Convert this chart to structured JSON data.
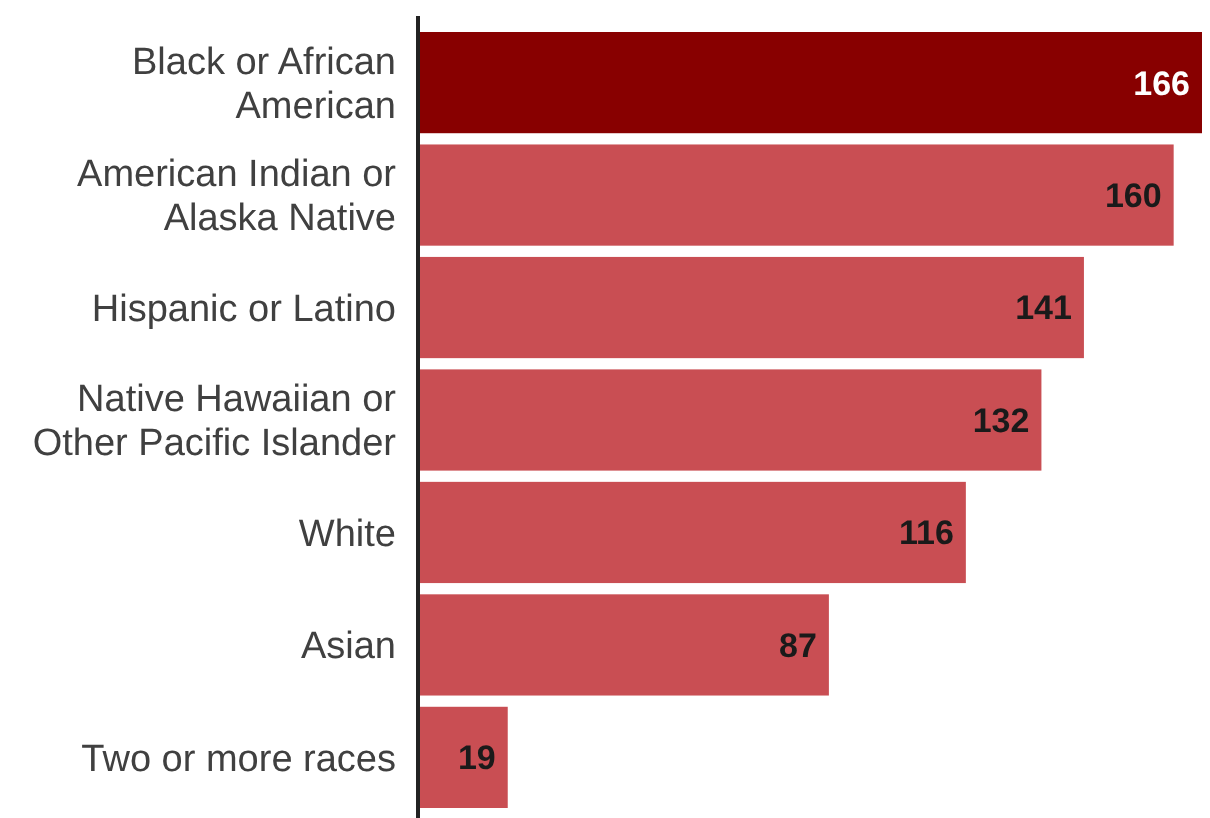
{
  "chart_data": {
    "type": "bar",
    "orientation": "horizontal",
    "categories": [
      "Black or African American",
      "American Indian or Alaska Native",
      "Hispanic or Latino",
      "Native Hawaiian or Other Pacific Islander",
      "White",
      "Asian",
      "Two or more races"
    ],
    "values": [
      166,
      160,
      141,
      132,
      116,
      87,
      19
    ],
    "colors": [
      "#880000",
      "#c94e53",
      "#c94e53",
      "#c94e53",
      "#c94e53",
      "#c94e53",
      "#c94e53"
    ],
    "xlim": [
      0,
      166
    ],
    "data_labels": true
  }
}
